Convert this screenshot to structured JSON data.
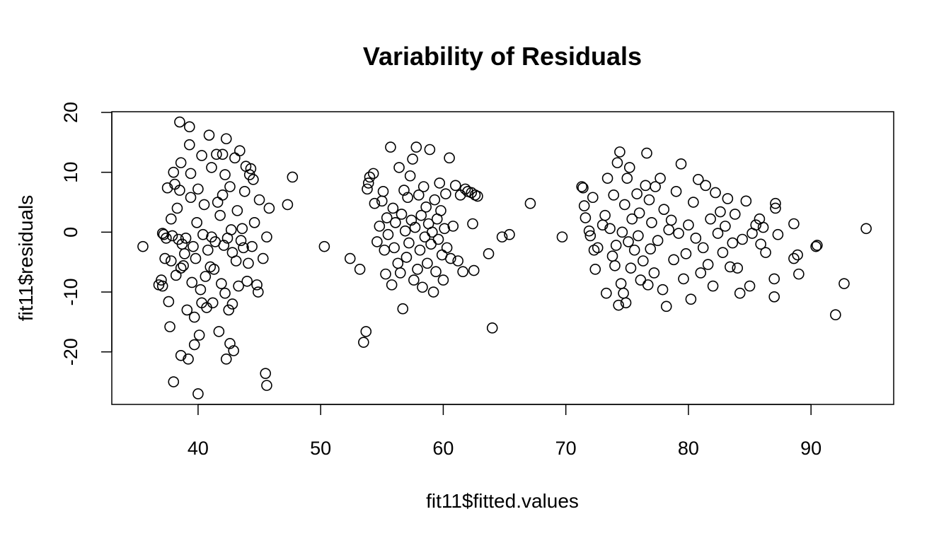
{
  "chart_data": {
    "type": "scatter",
    "title": "Variability of Residuals",
    "xlabel": "fit11$fitted.values",
    "ylabel": "fit11$residuals",
    "xlim": [
      35,
      95
    ],
    "ylim": [
      -28,
      20
    ],
    "xticks": [
      40,
      50,
      60,
      70,
      80,
      90
    ],
    "yticks": [
      -20,
      -10,
      0,
      10,
      20
    ],
    "xtick_labels": [
      "40",
      "50",
      "60",
      "70",
      "80",
      "90"
    ],
    "ytick_labels": [
      "-20",
      "-10",
      "0",
      "10",
      "20"
    ],
    "grid": false,
    "legend": "none",
    "marker": "open-circle",
    "colors": {
      "point": "#000000",
      "axis": "#000000",
      "background": "#ffffff"
    },
    "points": [
      [
        35.5,
        -2.4
      ],
      [
        36.8,
        -8.8
      ],
      [
        37.0,
        -8.0
      ],
      [
        37.1,
        -9.0
      ],
      [
        37.1,
        -0.2
      ],
      [
        37.2,
        -0.4
      ],
      [
        37.3,
        -4.4
      ],
      [
        37.4,
        -1.0
      ],
      [
        37.5,
        7.4
      ],
      [
        37.6,
        -11.6
      ],
      [
        37.7,
        -15.8
      ],
      [
        37.8,
        -4.8
      ],
      [
        37.8,
        2.2
      ],
      [
        37.9,
        -0.6
      ],
      [
        38.0,
        -25.0
      ],
      [
        38.0,
        10.0
      ],
      [
        38.1,
        8.0
      ],
      [
        38.2,
        -7.2
      ],
      [
        38.3,
        4.0
      ],
      [
        38.4,
        -1.2
      ],
      [
        38.5,
        18.4
      ],
      [
        38.5,
        7.0
      ],
      [
        38.6,
        -6.0
      ],
      [
        38.6,
        -20.6
      ],
      [
        38.6,
        11.6
      ],
      [
        38.7,
        -2.0
      ],
      [
        38.8,
        -5.6
      ],
      [
        38.9,
        -3.6
      ],
      [
        39.0,
        -1.0
      ],
      [
        39.1,
        -13.0
      ],
      [
        39.2,
        -21.2
      ],
      [
        39.3,
        17.6
      ],
      [
        39.3,
        14.6
      ],
      [
        39.4,
        9.8
      ],
      [
        39.4,
        5.8
      ],
      [
        39.5,
        -8.4
      ],
      [
        39.6,
        -2.4
      ],
      [
        39.7,
        -14.2
      ],
      [
        39.7,
        -18.8
      ],
      [
        39.8,
        -4.4
      ],
      [
        39.9,
        1.6
      ],
      [
        40.0,
        -27.0
      ],
      [
        40.0,
        7.2
      ],
      [
        40.1,
        -17.2
      ],
      [
        40.2,
        -9.6
      ],
      [
        40.3,
        -11.8
      ],
      [
        40.3,
        12.8
      ],
      [
        40.4,
        -0.4
      ],
      [
        40.5,
        4.6
      ],
      [
        40.6,
        -7.4
      ],
      [
        40.7,
        -12.6
      ],
      [
        40.8,
        -3.0
      ],
      [
        40.9,
        16.2
      ],
      [
        41.0,
        -5.8
      ],
      [
        41.1,
        10.8
      ],
      [
        41.1,
        -0.8
      ],
      [
        41.2,
        -11.8
      ],
      [
        41.3,
        -6.2
      ],
      [
        41.4,
        -1.6
      ],
      [
        41.5,
        13.0
      ],
      [
        41.6,
        5.0
      ],
      [
        41.7,
        -16.6
      ],
      [
        41.8,
        2.8
      ],
      [
        41.9,
        -8.6
      ],
      [
        42.0,
        13.0
      ],
      [
        42.0,
        6.2
      ],
      [
        42.1,
        -2.2
      ],
      [
        42.2,
        -10.2
      ],
      [
        42.2,
        9.6
      ],
      [
        42.3,
        15.6
      ],
      [
        42.3,
        -21.2
      ],
      [
        42.4,
        -1.0
      ],
      [
        42.5,
        -13.0
      ],
      [
        42.6,
        7.6
      ],
      [
        42.6,
        -18.6
      ],
      [
        42.7,
        0.4
      ],
      [
        42.8,
        -3.4
      ],
      [
        42.8,
        -12.0
      ],
      [
        42.9,
        -19.8
      ],
      [
        43.0,
        12.4
      ],
      [
        43.1,
        -4.8
      ],
      [
        43.2,
        3.6
      ],
      [
        43.3,
        -9.0
      ],
      [
        43.4,
        13.6
      ],
      [
        43.5,
        -1.4
      ],
      [
        43.6,
        0.6
      ],
      [
        43.7,
        -2.6
      ],
      [
        43.8,
        6.8
      ],
      [
        43.9,
        11.0
      ],
      [
        44.0,
        -8.2
      ],
      [
        44.1,
        -5.2
      ],
      [
        44.2,
        9.6
      ],
      [
        44.3,
        10.6
      ],
      [
        44.4,
        -2.4
      ],
      [
        44.5,
        8.8
      ],
      [
        44.6,
        1.6
      ],
      [
        44.8,
        -8.8
      ],
      [
        44.9,
        -10.0
      ],
      [
        45.0,
        5.4
      ],
      [
        45.3,
        -4.4
      ],
      [
        45.5,
        -23.6
      ],
      [
        45.6,
        -25.6
      ],
      [
        45.6,
        -0.8
      ],
      [
        45.8,
        4.0
      ],
      [
        47.3,
        4.6
      ],
      [
        47.7,
        9.2
      ],
      [
        50.3,
        -2.4
      ],
      [
        52.4,
        -4.4
      ],
      [
        53.2,
        -6.2
      ],
      [
        53.5,
        -18.4
      ],
      [
        53.7,
        -16.6
      ],
      [
        53.8,
        7.2
      ],
      [
        53.9,
        8.2
      ],
      [
        54.0,
        9.2
      ],
      [
        54.3,
        9.8
      ],
      [
        54.4,
        4.8
      ],
      [
        54.6,
        -1.6
      ],
      [
        54.8,
        1.0
      ],
      [
        55.0,
        5.2
      ],
      [
        55.1,
        6.8
      ],
      [
        55.2,
        -3.0
      ],
      [
        55.3,
        -7.0
      ],
      [
        55.4,
        2.4
      ],
      [
        55.5,
        -0.4
      ],
      [
        55.7,
        14.2
      ],
      [
        55.8,
        -8.8
      ],
      [
        55.9,
        4.0
      ],
      [
        56.0,
        -2.6
      ],
      [
        56.1,
        1.6
      ],
      [
        56.3,
        -5.2
      ],
      [
        56.4,
        10.8
      ],
      [
        56.5,
        -6.8
      ],
      [
        56.6,
        3.0
      ],
      [
        56.7,
        -12.8
      ],
      [
        56.8,
        7.0
      ],
      [
        56.9,
        0.2
      ],
      [
        57.0,
        -4.2
      ],
      [
        57.1,
        5.8
      ],
      [
        57.2,
        -1.8
      ],
      [
        57.3,
        9.4
      ],
      [
        57.4,
        2.0
      ],
      [
        57.5,
        12.2
      ],
      [
        57.6,
        -8.0
      ],
      [
        57.7,
        0.8
      ],
      [
        57.8,
        14.2
      ],
      [
        57.9,
        -6.2
      ],
      [
        58.0,
        6.2
      ],
      [
        58.1,
        -3.0
      ],
      [
        58.2,
        2.8
      ],
      [
        58.3,
        -9.2
      ],
      [
        58.4,
        7.6
      ],
      [
        58.5,
        -0.8
      ],
      [
        58.6,
        4.2
      ],
      [
        58.7,
        -5.2
      ],
      [
        58.8,
        1.4
      ],
      [
        58.9,
        13.8
      ],
      [
        59.0,
        -2.0
      ],
      [
        59.1,
        0.0
      ],
      [
        59.2,
        -10.0
      ],
      [
        59.3,
        5.4
      ],
      [
        59.4,
        -6.6
      ],
      [
        59.5,
        2.2
      ],
      [
        59.6,
        -1.2
      ],
      [
        59.7,
        8.2
      ],
      [
        59.8,
        3.6
      ],
      [
        59.9,
        -3.8
      ],
      [
        60.0,
        -8.0
      ],
      [
        60.1,
        0.6
      ],
      [
        60.2,
        6.4
      ],
      [
        60.3,
        -2.6
      ],
      [
        60.5,
        12.4
      ],
      [
        60.6,
        -4.4
      ],
      [
        60.8,
        1.0
      ],
      [
        61.0,
        7.8
      ],
      [
        61.2,
        -4.8
      ],
      [
        61.4,
        6.2
      ],
      [
        61.6,
        -6.6
      ],
      [
        61.8,
        7.2
      ],
      [
        62.0,
        6.8
      ],
      [
        62.3,
        6.6
      ],
      [
        62.4,
        1.4
      ],
      [
        62.5,
        -6.4
      ],
      [
        62.6,
        6.2
      ],
      [
        62.8,
        6.0
      ],
      [
        63.7,
        -3.6
      ],
      [
        64.0,
        -16.0
      ],
      [
        64.8,
        -0.8
      ],
      [
        65.4,
        -0.4
      ],
      [
        67.1,
        4.8
      ],
      [
        69.7,
        -0.8
      ],
      [
        71.3,
        7.6
      ],
      [
        71.4,
        7.4
      ],
      [
        71.5,
        4.4
      ],
      [
        71.6,
        2.4
      ],
      [
        71.9,
        0.2
      ],
      [
        72.0,
        -0.6
      ],
      [
        72.2,
        5.8
      ],
      [
        72.3,
        -3.0
      ],
      [
        72.4,
        -6.2
      ],
      [
        72.6,
        -2.6
      ],
      [
        73.0,
        1.2
      ],
      [
        73.2,
        2.8
      ],
      [
        73.3,
        -10.2
      ],
      [
        73.4,
        9.0
      ],
      [
        73.6,
        0.6
      ],
      [
        73.8,
        -4.0
      ],
      [
        73.9,
        6.2
      ],
      [
        74.0,
        -5.6
      ],
      [
        74.1,
        -2.2
      ],
      [
        74.2,
        11.6
      ],
      [
        74.3,
        -12.2
      ],
      [
        74.4,
        13.4
      ],
      [
        74.5,
        -8.6
      ],
      [
        74.6,
        0.0
      ],
      [
        74.7,
        -10.2
      ],
      [
        74.8,
        4.6
      ],
      [
        74.9,
        -11.8
      ],
      [
        75.0,
        9.0
      ],
      [
        75.1,
        -1.6
      ],
      [
        75.2,
        10.8
      ],
      [
        75.3,
        -6.0
      ],
      [
        75.4,
        2.2
      ],
      [
        75.6,
        -3.0
      ],
      [
        75.8,
        6.4
      ],
      [
        75.9,
        -0.6
      ],
      [
        76.0,
        3.2
      ],
      [
        76.1,
        -8.0
      ],
      [
        76.3,
        -4.8
      ],
      [
        76.5,
        7.8
      ],
      [
        76.6,
        13.2
      ],
      [
        76.7,
        -8.8
      ],
      [
        76.8,
        5.4
      ],
      [
        76.9,
        -2.8
      ],
      [
        77.0,
        1.6
      ],
      [
        77.2,
        -6.8
      ],
      [
        77.3,
        7.6
      ],
      [
        77.5,
        -1.4
      ],
      [
        77.7,
        9.0
      ],
      [
        77.9,
        -9.6
      ],
      [
        78.0,
        3.8
      ],
      [
        78.2,
        -12.4
      ],
      [
        78.4,
        0.4
      ],
      [
        78.6,
        2.0
      ],
      [
        78.8,
        -4.6
      ],
      [
        79.0,
        6.8
      ],
      [
        79.2,
        -0.2
      ],
      [
        79.4,
        11.4
      ],
      [
        79.6,
        -7.8
      ],
      [
        79.8,
        -3.6
      ],
      [
        80.0,
        1.2
      ],
      [
        80.2,
        -11.2
      ],
      [
        80.4,
        5.0
      ],
      [
        80.6,
        -1.0
      ],
      [
        80.8,
        8.8
      ],
      [
        81.0,
        -6.8
      ],
      [
        81.2,
        -2.6
      ],
      [
        81.4,
        7.8
      ],
      [
        81.6,
        -5.4
      ],
      [
        81.8,
        2.2
      ],
      [
        82.0,
        -9.0
      ],
      [
        82.2,
        6.6
      ],
      [
        82.4,
        -0.2
      ],
      [
        82.6,
        3.4
      ],
      [
        82.8,
        -3.4
      ],
      [
        83.0,
        1.0
      ],
      [
        83.2,
        5.6
      ],
      [
        83.4,
        -5.8
      ],
      [
        83.6,
        -1.8
      ],
      [
        83.8,
        3.0
      ],
      [
        84.0,
        -6.0
      ],
      [
        84.2,
        -10.2
      ],
      [
        84.4,
        -1.2
      ],
      [
        84.7,
        5.2
      ],
      [
        85.0,
        -9.0
      ],
      [
        85.2,
        -0.2
      ],
      [
        85.5,
        1.2
      ],
      [
        85.8,
        2.2
      ],
      [
        85.9,
        -2.0
      ],
      [
        86.1,
        0.8
      ],
      [
        86.3,
        -3.4
      ],
      [
        87.0,
        -10.8
      ],
      [
        87.1,
        4.0
      ],
      [
        87.1,
        4.8
      ],
      [
        87.3,
        -0.4
      ],
      [
        87.0,
        -7.8
      ],
      [
        88.6,
        1.4
      ],
      [
        88.6,
        -4.4
      ],
      [
        88.9,
        -3.8
      ],
      [
        89.0,
        -7.0
      ],
      [
        90.4,
        -2.4
      ],
      [
        90.5,
        -2.2
      ],
      [
        92.0,
        -13.8
      ],
      [
        92.7,
        -8.6
      ],
      [
        94.5,
        0.6
      ]
    ]
  }
}
